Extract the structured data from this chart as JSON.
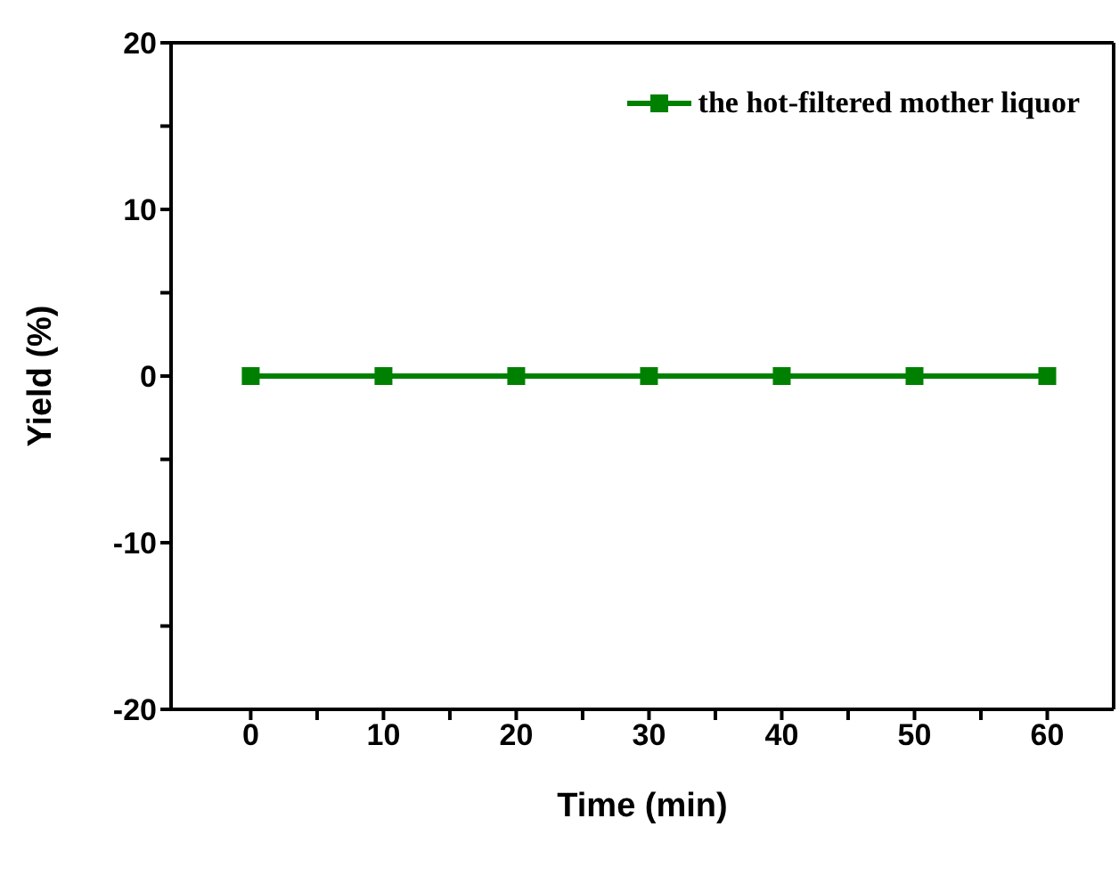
{
  "chart_data": {
    "type": "line",
    "xlabel": "Time (min)",
    "ylabel": "Yield (%)",
    "x": [
      0,
      10,
      20,
      30,
      40,
      50,
      60
    ],
    "series": [
      {
        "name": "the hot-filtered mother liquor",
        "color": "#008000",
        "values": [
          0,
          0,
          0,
          0,
          0,
          0,
          0
        ]
      }
    ],
    "xlim": [
      -6,
      65
    ],
    "xticks": [
      0,
      {
        "value": 5,
        "label": null
      },
      10,
      {
        "value": 15,
        "label": null
      },
      20,
      {
        "value": 25,
        "label": null
      },
      30,
      {
        "value": 35,
        "label": null
      },
      40,
      {
        "value": 45,
        "label": null
      },
      50,
      {
        "value": 55,
        "label": null
      },
      60
    ],
    "ylim": [
      -20,
      20
    ],
    "yticks": [
      -20,
      {
        "value": -15,
        "label": null
      },
      -10,
      {
        "value": -5,
        "label": null
      },
      0,
      {
        "value": 5,
        "label": null
      },
      10,
      {
        "value": 15,
        "label": null
      },
      20
    ],
    "grid": false,
    "legend": "top right",
    "marker": "square",
    "line_style": "solid"
  }
}
